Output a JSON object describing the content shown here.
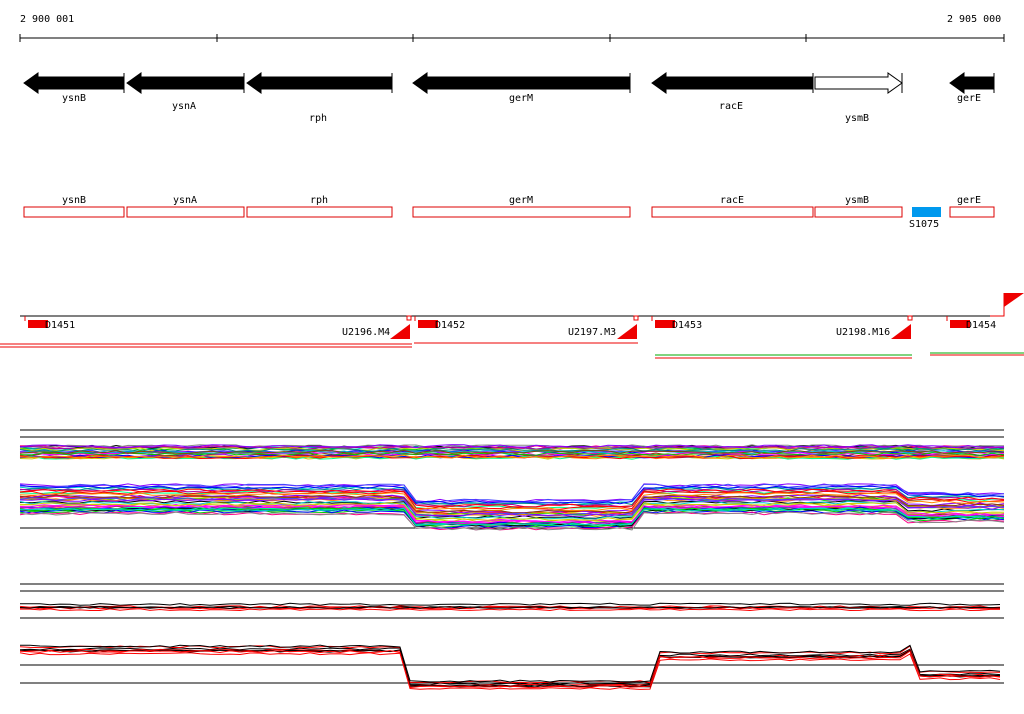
{
  "ruler": {
    "start_label": "2 900 001",
    "end_label": "2 905 000"
  },
  "gene_track": {
    "genes": [
      {
        "name": "ysnB",
        "strand": "reverse",
        "filled": true
      },
      {
        "name": "ysnA",
        "strand": "reverse",
        "filled": true
      },
      {
        "name": "rph",
        "strand": "reverse",
        "filled": true
      },
      {
        "name": "gerM",
        "strand": "reverse",
        "filled": true
      },
      {
        "name": "racE",
        "strand": "reverse",
        "filled": true
      },
      {
        "name": "ysmB",
        "strand": "forward",
        "filled": false
      },
      {
        "name": "gerE",
        "strand": "reverse",
        "filled": true
      }
    ]
  },
  "annotation_track": {
    "boxes": [
      "ysnB",
      "ysnA",
      "rph",
      "gerM",
      "racE",
      "ysmB",
      "gerE"
    ],
    "feature": {
      "name": "S1075",
      "color": "#0099ee"
    }
  },
  "promoter_track": {
    "labels": [
      "D1451",
      "U2196.M4",
      "D1452",
      "U2197.M3",
      "D1453",
      "U2198.M16",
      "D1454"
    ]
  },
  "colors": {
    "gene_fill": "#000000",
    "annotation_outline": "#dd0000",
    "promoter_red": "#ee0000",
    "feature_blue": "#0099ee",
    "line_green": "#00aa00",
    "line_red": "#ff0000"
  }
}
